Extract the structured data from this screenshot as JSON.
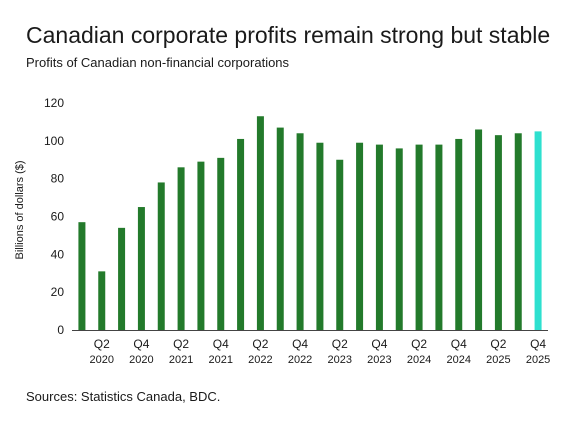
{
  "title": "Canadian corporate profits remain strong but stable",
  "subtitle": "Profits of Canadian non-financial corporations",
  "source": "Sources: Statistics Canada, BDC.",
  "chart_data": {
    "type": "bar",
    "ylabel": "Billions of dollars ($)",
    "xlabel": "",
    "ylim": [
      0,
      120
    ],
    "yticks": [
      0,
      20,
      40,
      60,
      80,
      100,
      120
    ],
    "grid": false,
    "colors": {
      "bar": "#237a2b",
      "highlight": "#2ee0cf"
    },
    "categories": [
      "Q1 2020",
      "Q2 2020",
      "Q3 2020",
      "Q4 2020",
      "Q1 2021",
      "Q2 2021",
      "Q3 2021",
      "Q4 2021",
      "Q1 2022",
      "Q2 2022",
      "Q3 2022",
      "Q4 2022",
      "Q1 2023",
      "Q2 2023",
      "Q3 2023",
      "Q4 2023",
      "Q1 2024",
      "Q2 2024",
      "Q3 2024",
      "Q4 2024",
      "Q1 2025",
      "Q2 2025",
      "Q3 2025",
      "Q4 2025"
    ],
    "values": [
      57,
      31,
      54,
      65,
      78,
      86,
      89,
      91,
      101,
      113,
      107,
      104,
      99,
      90,
      99,
      98,
      96,
      98,
      98,
      101,
      106,
      103,
      104,
      105
    ],
    "highlight_index": 23,
    "xtick_labels": [
      {
        "index": 1,
        "quarter": "Q2",
        "year": "2020"
      },
      {
        "index": 3,
        "quarter": "Q4",
        "year": "2020"
      },
      {
        "index": 5,
        "quarter": "Q2",
        "year": "2021"
      },
      {
        "index": 7,
        "quarter": "Q4",
        "year": "2021"
      },
      {
        "index": 9,
        "quarter": "Q2",
        "year": "2022"
      },
      {
        "index": 11,
        "quarter": "Q4",
        "year": "2022"
      },
      {
        "index": 13,
        "quarter": "Q2",
        "year": "2023"
      },
      {
        "index": 15,
        "quarter": "Q4",
        "year": "2023"
      },
      {
        "index": 17,
        "quarter": "Q2",
        "year": "2024"
      },
      {
        "index": 19,
        "quarter": "Q4",
        "year": "2024"
      },
      {
        "index": 21,
        "quarter": "Q2",
        "year": "2025"
      },
      {
        "index": 23,
        "quarter": "Q4",
        "year": "2025"
      }
    ]
  }
}
